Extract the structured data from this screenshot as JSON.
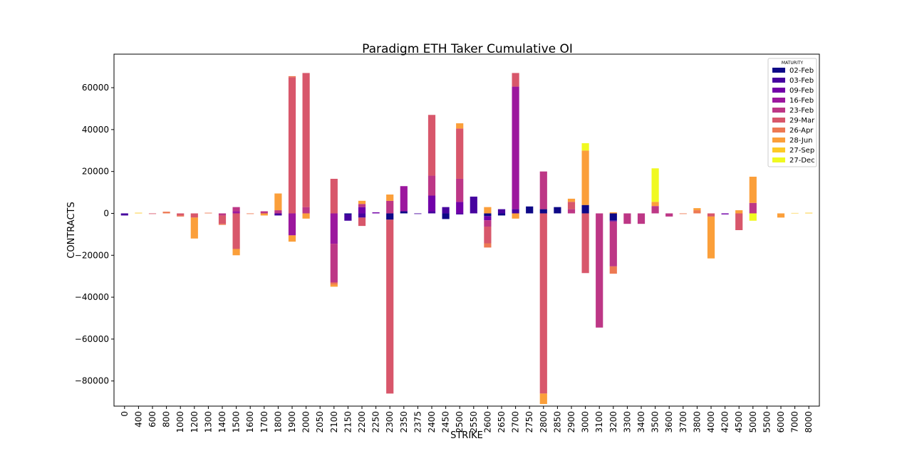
{
  "chart_data": {
    "type": "bar",
    "stacked": true,
    "title": "Paradigm ETH Taker Cumulative OI",
    "xlabel": "STRIKE",
    "ylabel": "CONTRACTS",
    "ylim": [
      -92000,
      76000
    ],
    "yticks": [
      -80000,
      -60000,
      -40000,
      -20000,
      0,
      20000,
      40000,
      60000
    ],
    "grid": false,
    "legend_title": "MATURITY",
    "legend_position": "top-right",
    "categories": [
      "0",
      "400",
      "600",
      "800",
      "1000",
      "1200",
      "1300",
      "1400",
      "1500",
      "1600",
      "1700",
      "1800",
      "1900",
      "2000",
      "2050",
      "2100",
      "2150",
      "2200",
      "2250",
      "2300",
      "2350",
      "2375",
      "2400",
      "2450",
      "2500",
      "2550",
      "2600",
      "2650",
      "2700",
      "2750",
      "2800",
      "2850",
      "2900",
      "3000",
      "3100",
      "3200",
      "3300",
      "3400",
      "3500",
      "3600",
      "3700",
      "3800",
      "4000",
      "4200",
      "4500",
      "5000",
      "5500",
      "6000",
      "7000",
      "8000"
    ],
    "series": [
      {
        "name": "02-Feb",
        "color": "#0d0887",
        "values": [
          0,
          0,
          0,
          0,
          0,
          0,
          0,
          0,
          0,
          0,
          0,
          0,
          0,
          0,
          0,
          0,
          -500,
          0,
          0,
          -3000,
          1000,
          0,
          0,
          -2700,
          0,
          0,
          -1300,
          -1000,
          0,
          3300,
          2000,
          3000,
          0,
          4000,
          0,
          -3300,
          0,
          0,
          0,
          0,
          0,
          0,
          0,
          0,
          0,
          0,
          0,
          0,
          0,
          0
        ]
      },
      {
        "name": "03-Feb",
        "color": "#46039f",
        "values": [
          -1000,
          0,
          0,
          0,
          0,
          0,
          0,
          0,
          0,
          0,
          0,
          -1000,
          0,
          0,
          0,
          0,
          -3000,
          -2000,
          0,
          0,
          0,
          -300,
          1000,
          3000,
          -500,
          8000,
          0,
          2000,
          2000,
          0,
          0,
          0,
          0,
          0,
          0,
          -500,
          0,
          0,
          0,
          0,
          0,
          0,
          0,
          0,
          0,
          0,
          0,
          0,
          0,
          0
        ]
      },
      {
        "name": "09-Feb",
        "color": "#7201a8",
        "values": [
          0,
          0,
          0,
          0,
          0,
          0,
          0,
          0,
          0,
          0,
          0,
          0,
          0,
          0,
          0,
          0,
          0,
          3000,
          500,
          0,
          0,
          0,
          7500,
          0,
          5500,
          0,
          -2000,
          0,
          0,
          0,
          0,
          0,
          0,
          0,
          0,
          0,
          0,
          0,
          0,
          0,
          0,
          0,
          0,
          -500,
          0,
          0,
          0,
          0,
          0,
          0
        ]
      },
      {
        "name": "16-Feb",
        "color": "#9c179e",
        "values": [
          0,
          0,
          0,
          0,
          0,
          0,
          0,
          0,
          1000,
          0,
          0,
          0,
          -10500,
          0,
          0,
          -14500,
          0,
          0,
          0,
          0,
          12000,
          0,
          0,
          0,
          0,
          0,
          0,
          0,
          58500,
          0,
          0,
          0,
          0,
          0,
          0,
          0,
          0,
          0,
          0,
          0,
          0,
          0,
          0,
          0,
          0,
          0,
          0,
          0,
          0,
          0
        ]
      },
      {
        "name": "23-Feb",
        "color": "#bd3786",
        "values": [
          0,
          0,
          0,
          0,
          0,
          0,
          0,
          -1000,
          2000,
          0,
          1000,
          1500,
          0,
          3000,
          0,
          -18500,
          0,
          1500,
          0,
          6000,
          0,
          0,
          9500,
          0,
          11000,
          0,
          -3000,
          0,
          0,
          0,
          18000,
          0,
          2000,
          0,
          -54500,
          -21500,
          -5000,
          -5000,
          3500,
          -1500,
          0,
          0,
          0,
          0,
          0,
          5000,
          0,
          0,
          0,
          0
        ]
      },
      {
        "name": "29-Mar",
        "color": "#d8576b",
        "values": [
          0,
          0,
          -300,
          0,
          -1000,
          -2000,
          0,
          -4000,
          -17000,
          0,
          0,
          0,
          65000,
          64000,
          0,
          16500,
          0,
          -4000,
          0,
          -83000,
          0,
          0,
          29000,
          0,
          24000,
          0,
          -8000,
          0,
          6500,
          0,
          -86000,
          0,
          3500,
          -28500,
          0,
          0,
          0,
          0,
          0,
          0,
          0,
          0,
          -1500,
          0,
          -8000,
          0,
          0,
          0,
          0,
          0
        ]
      },
      {
        "name": "26-Apr",
        "color": "#ed7953",
        "values": [
          0,
          0,
          0,
          800,
          -500,
          0,
          300,
          -500,
          0,
          -300,
          0,
          0,
          500,
          0,
          0,
          -1000,
          0,
          0,
          0,
          0,
          0,
          0,
          0,
          0,
          0,
          0,
          -2000,
          0,
          0,
          0,
          0,
          0,
          0,
          0,
          0,
          -3500,
          0,
          0,
          0,
          0,
          -300,
          1500,
          0,
          0,
          0,
          0,
          0,
          0,
          0,
          0
        ]
      },
      {
        "name": "28-Jun",
        "color": "#fb9f3a",
        "values": [
          0,
          0,
          0,
          0,
          0,
          -10000,
          0,
          0,
          -3000,
          0,
          -1000,
          8000,
          -3000,
          -2500,
          0,
          -1000,
          0,
          1500,
          0,
          3000,
          0,
          0,
          0,
          0,
          2500,
          0,
          3000,
          0,
          -2500,
          0,
          -5000,
          0,
          1500,
          26000,
          0,
          500,
          0,
          0,
          2000,
          0,
          0,
          1000,
          -20000,
          0,
          1500,
          12500,
          0,
          -2000,
          0,
          0
        ]
      },
      {
        "name": "27-Sep",
        "color": "#fdca26",
        "values": [
          0,
          300,
          0,
          0,
          0,
          0,
          0,
          0,
          0,
          0,
          0,
          0,
          0,
          0,
          0,
          0,
          0,
          0,
          0,
          0,
          0,
          0,
          0,
          0,
          0,
          0,
          0,
          0,
          0,
          0,
          0,
          0,
          0,
          0,
          0,
          0,
          0,
          0,
          0,
          0,
          0,
          0,
          0,
          0,
          0,
          0,
          0,
          0,
          200,
          300
        ]
      },
      {
        "name": "27-Dec",
        "color": "#f0f921",
        "values": [
          0,
          0,
          0,
          0,
          0,
          0,
          0,
          0,
          0,
          0,
          0,
          0,
          0,
          0,
          0,
          0,
          0,
          0,
          0,
          0,
          0,
          0,
          0,
          0,
          0,
          0,
          0,
          0,
          0,
          0,
          0,
          0,
          0,
          3500,
          0,
          0,
          0,
          0,
          16000,
          0,
          0,
          0,
          0,
          0,
          0,
          -3500,
          0,
          0,
          0,
          0
        ]
      }
    ]
  }
}
